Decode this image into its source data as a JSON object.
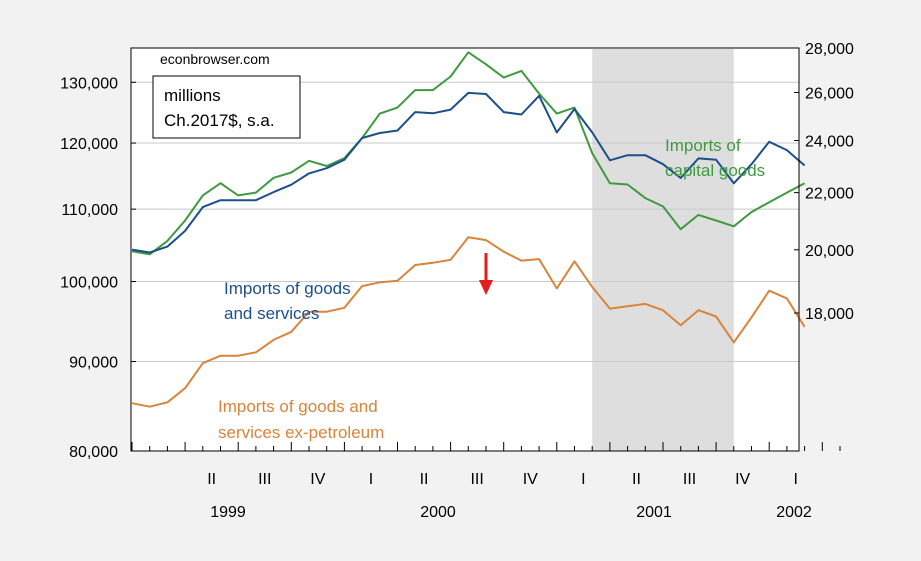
{
  "chart_data": {
    "type": "line",
    "source": "econbrowser.com",
    "units_lines": [
      "millions",
      "Ch.2017$, s.a."
    ],
    "x_quarter_labels": [
      "II",
      "III",
      "IV",
      "I",
      "II",
      "III",
      "IV",
      "I",
      "II",
      "III",
      "IV",
      "I"
    ],
    "x_year_labels": [
      "1999",
      "2000",
      "2001",
      "2002"
    ],
    "left_axis": {
      "scale": "log",
      "ylim": [
        80000,
        136000
      ],
      "ticks": [
        "80,000",
        "90,000",
        "100,000",
        "110,000",
        "120,000",
        "130,000"
      ]
    },
    "right_axis": {
      "scale": "log",
      "ylim": [
        14300,
        28000
      ],
      "ticks": [
        "18,000",
        "20,000",
        "22,000",
        "24,000",
        "26,000",
        "28,000"
      ]
    },
    "recession_shade": {
      "start": "2001-03",
      "end": "2001-11"
    },
    "arrow_at": "2000-09",
    "series": [
      {
        "name": "Imports of capital goods",
        "label_lines": [
          "Imports of",
          "capital goods"
        ],
        "axis": "right",
        "color": "#3f9a3f",
        "months": [
          "1999-01",
          "1999-02",
          "1999-03",
          "1999-04",
          "1999-05",
          "1999-06",
          "1999-07",
          "1999-08",
          "1999-09",
          "1999-10",
          "1999-11",
          "1999-12",
          "2000-01",
          "2000-02",
          "2000-03",
          "2000-04",
          "2000-05",
          "2000-06",
          "2000-07",
          "2000-08",
          "2000-09",
          "2000-10",
          "2000-11",
          "2000-12",
          "2001-01",
          "2001-02",
          "2001-03",
          "2001-04",
          "2001-05",
          "2001-06",
          "2001-07",
          "2001-08",
          "2001-09",
          "2001-10",
          "2001-11",
          "2001-12",
          "2002-01",
          "2002-02",
          "2002-03"
        ],
        "values": [
          19950,
          19850,
          20300,
          21000,
          21900,
          22350,
          21900,
          22000,
          22550,
          22750,
          23200,
          23000,
          23300,
          24100,
          25100,
          25350,
          26100,
          26100,
          26700,
          27800,
          27250,
          26650,
          26950,
          25950,
          25100,
          25350,
          23500,
          22350,
          22300,
          21800,
          21500,
          20700,
          21200,
          21000,
          20800,
          21300,
          21650,
          22000,
          22350
        ]
      },
      {
        "name": "Imports of goods and services",
        "label_lines": [
          "Imports of goods",
          "and services"
        ],
        "axis": "left",
        "color": "#1c4f8c",
        "months": [
          "1999-01",
          "1999-02",
          "1999-03",
          "1999-04",
          "1999-05",
          "1999-06",
          "1999-07",
          "1999-08",
          "1999-09",
          "1999-10",
          "1999-11",
          "1999-12",
          "2000-01",
          "2000-02",
          "2000-03",
          "2000-04",
          "2000-05",
          "2000-06",
          "2000-07",
          "2000-08",
          "2000-09",
          "2000-10",
          "2000-11",
          "2000-12",
          "2001-01",
          "2001-02",
          "2001-03",
          "2001-04",
          "2001-05",
          "2001-06",
          "2001-07",
          "2001-08",
          "2001-09",
          "2001-10",
          "2001-11",
          "2001-12",
          "2002-01",
          "2002-02",
          "2002-03"
        ],
        "values": [
          104300,
          103900,
          104700,
          106900,
          110300,
          111300,
          111300,
          111300,
          112500,
          113600,
          115300,
          116100,
          117400,
          120800,
          121600,
          122000,
          125000,
          124800,
          125400,
          128200,
          128000,
          125000,
          124600,
          127700,
          121700,
          125500,
          121700,
          117300,
          118100,
          118100,
          116700,
          114600,
          117600,
          117400,
          113800,
          116700,
          120200,
          118900,
          116500
        ]
      },
      {
        "name": "Imports of goods and services ex-petroleum",
        "label_lines": [
          "Imports of goods and",
          "services ex-petroleum"
        ],
        "axis": "left",
        "color": "#d9843a",
        "months": [
          "1999-01",
          "1999-02",
          "1999-03",
          "1999-04",
          "1999-05",
          "1999-06",
          "1999-07",
          "1999-08",
          "1999-09",
          "1999-10",
          "1999-11",
          "1999-12",
          "2000-01",
          "2000-02",
          "2000-03",
          "2000-04",
          "2000-05",
          "2000-06",
          "2000-07",
          "2000-08",
          "2000-09",
          "2000-10",
          "2000-11",
          "2000-12",
          "2001-01",
          "2001-02",
          "2001-03",
          "2001-04",
          "2001-05",
          "2001-06",
          "2001-07",
          "2001-08",
          "2001-09",
          "2001-10",
          "2001-11",
          "2001-12",
          "2002-01",
          "2002-02",
          "2002-03"
        ],
        "values": [
          85200,
          84800,
          85300,
          86900,
          89800,
          90700,
          90700,
          91100,
          92600,
          93600,
          96100,
          96100,
          96600,
          99400,
          99900,
          100100,
          102200,
          102500,
          102900,
          106000,
          105600,
          104000,
          102800,
          103000,
          99100,
          102700,
          99300,
          96500,
          96800,
          97100,
          96300,
          94400,
          96300,
          95500,
          92300,
          95400,
          98800,
          97800,
          94200
        ]
      }
    ]
  }
}
